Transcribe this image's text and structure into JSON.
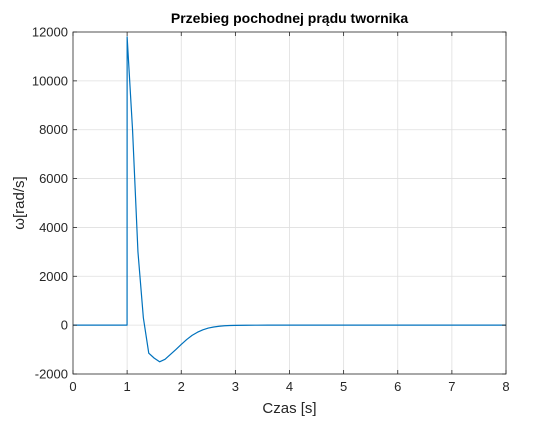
{
  "chart_data": {
    "type": "line",
    "title": "Przebieg pochodnej prądu twornika",
    "xlabel": "Czas [s]",
    "ylabel": "ω[rad/s]",
    "xlim": [
      0,
      8
    ],
    "ylim": [
      -2000,
      12000
    ],
    "grid": true,
    "x_ticks": [
      0,
      1,
      2,
      3,
      4,
      5,
      6,
      7,
      8
    ],
    "y_ticks": [
      -2000,
      0,
      2000,
      4000,
      6000,
      8000,
      10000,
      12000
    ],
    "x_tick_labels": [
      "0",
      "1",
      "2",
      "3",
      "4",
      "5",
      "6",
      "7",
      "8"
    ],
    "y_tick_labels": [
      "-2000",
      "0",
      "2000",
      "4000",
      "6000",
      "8000",
      "10000",
      "12000"
    ],
    "series": [
      {
        "color": "#0072bd",
        "x": [
          0,
          0.999,
          1.0,
          1.1,
          1.2,
          1.3,
          1.4,
          1.5,
          1.6,
          1.7,
          1.8,
          1.9,
          2.0,
          2.1,
          2.2,
          2.3,
          2.4,
          2.5,
          2.6,
          2.7,
          2.8,
          2.9,
          3.0,
          3.2,
          3.4,
          3.6,
          3.8,
          4.0,
          4.5,
          5.0,
          6.0,
          7.0,
          8.0
        ],
        "y": [
          0,
          0,
          11800,
          8000,
          3000,
          300,
          -1150,
          -1350,
          -1500,
          -1400,
          -1200,
          -1000,
          -790,
          -590,
          -420,
          -290,
          -190,
          -120,
          -75,
          -45,
          -25,
          -15,
          -8,
          -3,
          -1,
          0,
          0,
          0,
          0,
          0,
          0,
          0,
          0
        ]
      }
    ]
  }
}
